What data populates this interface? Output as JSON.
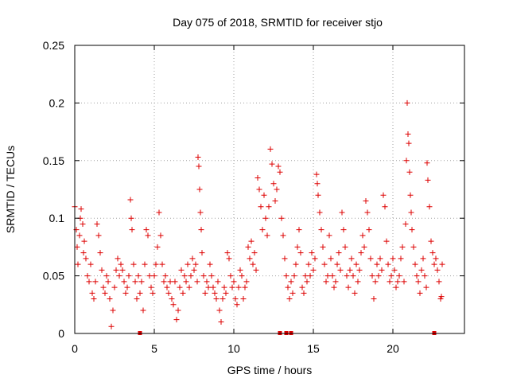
{
  "chart_data": {
    "type": "scatter",
    "title": "Day 075 of 2018, SRMTID for receiver stjo",
    "xlabel": "GPS time / hours",
    "ylabel": "SRMTID / TECUs",
    "xlim": [
      0,
      24.5
    ],
    "ylim": [
      0,
      0.25
    ],
    "grid": true,
    "marker": "+",
    "x_ticks": [
      0,
      5,
      10,
      15,
      20
    ],
    "x_tick_labels": [
      "0",
      "5",
      "10",
      "15",
      "20"
    ],
    "y_ticks": [
      0,
      0.05,
      0.1,
      0.15,
      0.2,
      0.25
    ],
    "y_tick_labels": [
      "0",
      "0.05",
      "0.1",
      "0.15",
      "0.2",
      "0.25"
    ],
    "series": [
      {
        "name": "SRMTID",
        "color": "#dd0000",
        "points": [
          [
            0.0,
            0.11
          ],
          [
            0.1,
            0.09
          ],
          [
            0.15,
            0.075
          ],
          [
            0.2,
            0.06
          ],
          [
            0.3,
            0.085
          ],
          [
            0.35,
            0.1
          ],
          [
            0.4,
            0.108
          ],
          [
            0.5,
            0.095
          ],
          [
            0.55,
            0.07
          ],
          [
            0.6,
            0.08
          ],
          [
            0.7,
            0.065
          ],
          [
            0.8,
            0.05
          ],
          [
            0.9,
            0.045
          ],
          [
            1.0,
            0.06
          ],
          [
            1.1,
            0.035
          ],
          [
            1.2,
            0.03
          ],
          [
            1.3,
            0.045
          ],
          [
            1.4,
            0.095
          ],
          [
            1.5,
            0.085
          ],
          [
            1.6,
            0.07
          ],
          [
            1.7,
            0.055
          ],
          [
            1.8,
            0.04
          ],
          [
            1.9,
            0.035
          ],
          [
            2.0,
            0.05
          ],
          [
            2.1,
            0.045
          ],
          [
            2.2,
            0.03
          ],
          [
            2.3,
            0.006
          ],
          [
            2.4,
            0.02
          ],
          [
            2.5,
            0.04
          ],
          [
            2.6,
            0.055
          ],
          [
            2.7,
            0.065
          ],
          [
            2.8,
            0.05
          ],
          [
            2.9,
            0.06
          ],
          [
            3.0,
            0.055
          ],
          [
            3.1,
            0.045
          ],
          [
            3.2,
            0.035
          ],
          [
            3.3,
            0.04
          ],
          [
            3.4,
            0.05
          ],
          [
            3.5,
            0.116
          ],
          [
            3.55,
            0.1
          ],
          [
            3.6,
            0.09
          ],
          [
            3.7,
            0.06
          ],
          [
            3.8,
            0.045
          ],
          [
            3.9,
            0.03
          ],
          [
            4.0,
            0.05
          ],
          [
            4.1,
            0.035
          ],
          [
            4.2,
            0.045
          ],
          [
            4.3,
            0.02
          ],
          [
            4.4,
            0.06
          ],
          [
            4.5,
            0.09
          ],
          [
            4.6,
            0.085
          ],
          [
            4.7,
            0.05
          ],
          [
            4.8,
            0.04
          ],
          [
            4.9,
            0.035
          ],
          [
            5.0,
            0.05
          ],
          [
            5.1,
            0.06
          ],
          [
            5.2,
            0.075
          ],
          [
            5.3,
            0.105
          ],
          [
            5.4,
            0.085
          ],
          [
            5.5,
            0.06
          ],
          [
            5.6,
            0.045
          ],
          [
            5.7,
            0.05
          ],
          [
            5.8,
            0.04
          ],
          [
            5.9,
            0.035
          ],
          [
            6.0,
            0.045
          ],
          [
            6.1,
            0.03
          ],
          [
            6.2,
            0.025
          ],
          [
            6.3,
            0.045
          ],
          [
            6.4,
            0.012
          ],
          [
            6.5,
            0.02
          ],
          [
            6.6,
            0.04
          ],
          [
            6.7,
            0.055
          ],
          [
            6.8,
            0.035
          ],
          [
            6.9,
            0.05
          ],
          [
            7.0,
            0.045
          ],
          [
            7.1,
            0.06
          ],
          [
            7.2,
            0.04
          ],
          [
            7.3,
            0.05
          ],
          [
            7.4,
            0.065
          ],
          [
            7.5,
            0.055
          ],
          [
            7.6,
            0.06
          ],
          [
            7.7,
            0.045
          ],
          [
            7.75,
            0.153
          ],
          [
            7.8,
            0.145
          ],
          [
            7.85,
            0.125
          ],
          [
            7.9,
            0.105
          ],
          [
            7.95,
            0.09
          ],
          [
            8.0,
            0.07
          ],
          [
            8.1,
            0.05
          ],
          [
            8.2,
            0.035
          ],
          [
            8.3,
            0.045
          ],
          [
            8.4,
            0.04
          ],
          [
            8.5,
            0.06
          ],
          [
            8.6,
            0.05
          ],
          [
            8.7,
            0.04
          ],
          [
            8.8,
            0.035
          ],
          [
            8.9,
            0.03
          ],
          [
            9.0,
            0.045
          ],
          [
            9.1,
            0.02
          ],
          [
            9.2,
            0.01
          ],
          [
            9.3,
            0.03
          ],
          [
            9.4,
            0.04
          ],
          [
            9.5,
            0.035
          ],
          [
            9.6,
            0.07
          ],
          [
            9.7,
            0.065
          ],
          [
            9.8,
            0.05
          ],
          [
            9.9,
            0.04
          ],
          [
            10.0,
            0.045
          ],
          [
            10.1,
            0.03
          ],
          [
            10.2,
            0.025
          ],
          [
            10.3,
            0.04
          ],
          [
            10.4,
            0.055
          ],
          [
            10.5,
            0.05
          ],
          [
            10.6,
            0.03
          ],
          [
            10.7,
            0.04
          ],
          [
            10.8,
            0.045
          ],
          [
            10.9,
            0.075
          ],
          [
            11.0,
            0.065
          ],
          [
            11.1,
            0.08
          ],
          [
            11.2,
            0.06
          ],
          [
            11.3,
            0.07
          ],
          [
            11.4,
            0.055
          ],
          [
            11.5,
            0.135
          ],
          [
            11.6,
            0.125
          ],
          [
            11.7,
            0.11
          ],
          [
            11.8,
            0.09
          ],
          [
            11.9,
            0.12
          ],
          [
            12.0,
            0.1
          ],
          [
            12.1,
            0.085
          ],
          [
            12.2,
            0.11
          ],
          [
            12.3,
            0.16
          ],
          [
            12.4,
            0.147
          ],
          [
            12.5,
            0.13
          ],
          [
            12.6,
            0.115
          ],
          [
            12.7,
            0.125
          ],
          [
            12.8,
            0.145
          ],
          [
            12.9,
            0.14
          ],
          [
            13.0,
            0.1
          ],
          [
            13.1,
            0.085
          ],
          [
            13.2,
            0.065
          ],
          [
            13.3,
            0.05
          ],
          [
            13.4,
            0.04
          ],
          [
            13.5,
            0.03
          ],
          [
            13.6,
            0.045
          ],
          [
            13.7,
            0.035
          ],
          [
            13.8,
            0.05
          ],
          [
            13.9,
            0.06
          ],
          [
            14.0,
            0.075
          ],
          [
            14.1,
            0.09
          ],
          [
            14.2,
            0.07
          ],
          [
            14.3,
            0.04
          ],
          [
            14.4,
            0.035
          ],
          [
            14.5,
            0.05
          ],
          [
            14.6,
            0.045
          ],
          [
            14.7,
            0.06
          ],
          [
            14.8,
            0.05
          ],
          [
            14.9,
            0.07
          ],
          [
            15.0,
            0.055
          ],
          [
            15.1,
            0.065
          ],
          [
            15.2,
            0.138
          ],
          [
            15.25,
            0.13
          ],
          [
            15.3,
            0.12
          ],
          [
            15.4,
            0.105
          ],
          [
            15.5,
            0.09
          ],
          [
            15.6,
            0.075
          ],
          [
            15.7,
            0.06
          ],
          [
            15.8,
            0.045
          ],
          [
            15.9,
            0.05
          ],
          [
            16.0,
            0.085
          ],
          [
            16.1,
            0.065
          ],
          [
            16.2,
            0.05
          ],
          [
            16.3,
            0.04
          ],
          [
            16.4,
            0.045
          ],
          [
            16.5,
            0.06
          ],
          [
            16.6,
            0.07
          ],
          [
            16.7,
            0.055
          ],
          [
            16.8,
            0.105
          ],
          [
            16.9,
            0.09
          ],
          [
            17.0,
            0.075
          ],
          [
            17.1,
            0.05
          ],
          [
            17.2,
            0.04
          ],
          [
            17.3,
            0.055
          ],
          [
            17.4,
            0.065
          ],
          [
            17.5,
            0.05
          ],
          [
            17.6,
            0.035
          ],
          [
            17.7,
            0.06
          ],
          [
            17.8,
            0.045
          ],
          [
            17.9,
            0.055
          ],
          [
            18.0,
            0.07
          ],
          [
            18.1,
            0.085
          ],
          [
            18.2,
            0.075
          ],
          [
            18.3,
            0.115
          ],
          [
            18.4,
            0.105
          ],
          [
            18.5,
            0.09
          ],
          [
            18.6,
            0.065
          ],
          [
            18.7,
            0.05
          ],
          [
            18.8,
            0.03
          ],
          [
            18.9,
            0.045
          ],
          [
            19.0,
            0.06
          ],
          [
            19.1,
            0.05
          ],
          [
            19.2,
            0.065
          ],
          [
            19.3,
            0.055
          ],
          [
            19.4,
            0.12
          ],
          [
            19.5,
            0.11
          ],
          [
            19.6,
            0.08
          ],
          [
            19.7,
            0.06
          ],
          [
            19.8,
            0.045
          ],
          [
            19.9,
            0.05
          ],
          [
            20.0,
            0.065
          ],
          [
            20.1,
            0.055
          ],
          [
            20.2,
            0.04
          ],
          [
            20.3,
            0.045
          ],
          [
            20.4,
            0.05
          ],
          [
            20.5,
            0.065
          ],
          [
            20.6,
            0.075
          ],
          [
            20.7,
            0.045
          ],
          [
            20.8,
            0.095
          ],
          [
            20.85,
            0.15
          ],
          [
            20.9,
            0.2
          ],
          [
            20.95,
            0.173
          ],
          [
            21.0,
            0.165
          ],
          [
            21.05,
            0.14
          ],
          [
            21.1,
            0.12
          ],
          [
            21.15,
            0.105
          ],
          [
            21.2,
            0.09
          ],
          [
            21.3,
            0.075
          ],
          [
            21.4,
            0.06
          ],
          [
            21.5,
            0.05
          ],
          [
            21.6,
            0.045
          ],
          [
            21.7,
            0.035
          ],
          [
            21.8,
            0.055
          ],
          [
            21.9,
            0.065
          ],
          [
            22.0,
            0.05
          ],
          [
            22.1,
            0.04
          ],
          [
            22.15,
            0.148
          ],
          [
            22.2,
            0.133
          ],
          [
            22.3,
            0.11
          ],
          [
            22.4,
            0.08
          ],
          [
            22.5,
            0.07
          ],
          [
            22.6,
            0.06
          ],
          [
            22.7,
            0.065
          ],
          [
            22.8,
            0.055
          ],
          [
            22.9,
            0.045
          ],
          [
            23.0,
            0.03
          ],
          [
            23.05,
            0.032
          ],
          [
            23.1,
            0.06
          ]
        ],
        "zero_points": [
          4.1,
          12.9,
          13.3,
          13.6,
          22.6
        ]
      }
    ]
  }
}
